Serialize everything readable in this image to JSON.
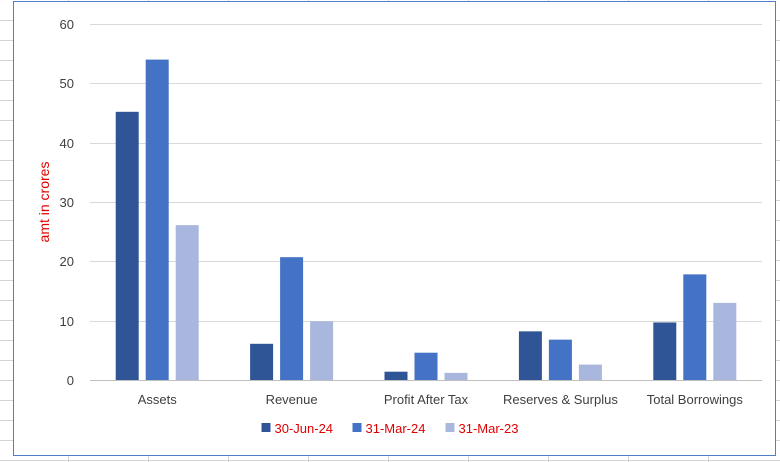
{
  "chart_data": {
    "type": "bar",
    "ylabel": "amt in crores",
    "ylim": [
      0,
      60
    ],
    "yticks": [
      0,
      10,
      20,
      30,
      40,
      50,
      60
    ],
    "grid": true,
    "legend_position": "bottom",
    "categories": [
      "Assets",
      "Revenue",
      "Profit After Tax",
      "Reserves & Surplus",
      "Total Borrowings"
    ],
    "series": [
      {
        "name": "30-Jun-24",
        "color": "#2f5597",
        "values": [
          45.2,
          6.1,
          1.4,
          8.2,
          9.7
        ]
      },
      {
        "name": "31-Mar-24",
        "color": "#4472c4",
        "values": [
          54.0,
          20.7,
          4.6,
          6.8,
          17.8
        ]
      },
      {
        "name": "31-Mar-23",
        "color": "#a9b7de",
        "values": [
          26.1,
          9.9,
          1.2,
          2.6,
          13.0
        ]
      }
    ]
  }
}
